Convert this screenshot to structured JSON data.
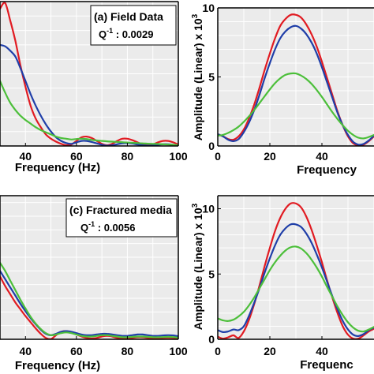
{
  "colors": {
    "red": "#e11b22",
    "blue": "#1f3ea8",
    "green": "#4cbf3a",
    "panel_bg": "#ebebeb",
    "grid": "#ffffff"
  },
  "chart_data": [
    {
      "id": "top-left",
      "type": "line",
      "annotation": [
        "(a) Field Data",
        "Q^-1 : 0.0029"
      ],
      "annotation_label": "(a) Field Data",
      "annotation_q": ": 0.0029",
      "xlabel": "Frequency (Hz)",
      "ylabel": "",
      "xlim": [
        30,
        100
      ],
      "ylim": [
        0,
        10
      ],
      "xticks": [
        40,
        60,
        80,
        100
      ],
      "grid": true,
      "series": [
        {
          "color": "red",
          "x": [
            30,
            32,
            34,
            36,
            38,
            40,
            42,
            44,
            46,
            48,
            50,
            52,
            54,
            56,
            58,
            60,
            62,
            64,
            66,
            68,
            70,
            72,
            74,
            76,
            78,
            80,
            82,
            84,
            86,
            88,
            90,
            92,
            94,
            96,
            98,
            100
          ],
          "y": [
            9.5,
            9.9,
            8.7,
            7.3,
            5.6,
            4.1,
            2.8,
            1.9,
            1.3,
            0.8,
            0.5,
            0.3,
            0.15,
            0.05,
            0.1,
            0.35,
            0.6,
            0.65,
            0.55,
            0.35,
            0.15,
            0.05,
            0.15,
            0.35,
            0.5,
            0.5,
            0.4,
            0.25,
            0.1,
            0.05,
            0.1,
            0.25,
            0.35,
            0.35,
            0.25,
            0.1
          ]
        },
        {
          "color": "blue",
          "x": [
            30,
            32,
            34,
            36,
            38,
            40,
            42,
            44,
            46,
            48,
            50,
            52,
            54,
            56,
            58,
            60,
            62,
            64,
            66,
            68,
            70,
            72,
            74,
            76,
            78,
            80,
            82,
            84,
            86,
            88,
            90,
            92,
            94,
            96,
            98,
            100
          ],
          "y": [
            7.0,
            6.9,
            6.6,
            6.2,
            5.4,
            4.5,
            3.6,
            2.8,
            2.1,
            1.5,
            1.0,
            0.6,
            0.35,
            0.2,
            0.15,
            0.25,
            0.35,
            0.35,
            0.28,
            0.18,
            0.08,
            0.02,
            0.05,
            0.12,
            0.18,
            0.2,
            0.17,
            0.1,
            0.05,
            0.02,
            0.04,
            0.08,
            0.12,
            0.12,
            0.08,
            0.03
          ]
        },
        {
          "color": "green",
          "x": [
            30,
            32,
            34,
            36,
            38,
            40,
            42,
            44,
            46,
            48,
            50,
            52,
            54,
            56,
            58,
            60,
            62,
            64,
            66,
            68,
            70,
            72,
            74,
            76,
            78,
            80,
            82,
            84,
            86,
            88,
            90,
            92,
            94,
            96,
            98,
            100
          ],
          "y": [
            4.5,
            3.7,
            3.0,
            2.5,
            2.1,
            1.8,
            1.55,
            1.3,
            1.1,
            0.95,
            0.8,
            0.65,
            0.55,
            0.5,
            0.45,
            0.48,
            0.5,
            0.48,
            0.42,
            0.38,
            0.35,
            0.32,
            0.3,
            0.28,
            0.26,
            0.24,
            0.22,
            0.2,
            0.18,
            0.16,
            0.15,
            0.14,
            0.12,
            0.1,
            0.08,
            0.05
          ]
        }
      ]
    },
    {
      "id": "top-right",
      "type": "line",
      "annotation": [],
      "xlabel": "Frequency",
      "ylabel": "Amplitude (Linear) x 10^3",
      "ylabel_main": "Amplitude (Linear) x 10",
      "ylabel_sup": "3",
      "xlim": [
        0,
        60
      ],
      "ylim": [
        0,
        10
      ],
      "xticks": [
        0,
        20,
        40
      ],
      "yticks": [
        0,
        5,
        10
      ],
      "grid": true,
      "series": [
        {
          "color": "red",
          "x": [
            0,
            2,
            4,
            6,
            8,
            10,
            12,
            14,
            16,
            18,
            20,
            22,
            24,
            26,
            28,
            30,
            32,
            34,
            36,
            38,
            40,
            42,
            44,
            46,
            48,
            50,
            52,
            54,
            56,
            58,
            60
          ],
          "y": [
            0.85,
            0.7,
            0.5,
            0.45,
            0.7,
            1.2,
            2.0,
            3.0,
            4.2,
            5.5,
            6.7,
            7.8,
            8.7,
            9.2,
            9.5,
            9.5,
            9.3,
            8.8,
            8.1,
            7.2,
            6.1,
            4.9,
            3.7,
            2.5,
            1.5,
            0.7,
            0.2,
            0.05,
            0.1,
            0.35,
            0.7
          ]
        },
        {
          "color": "blue",
          "x": [
            0,
            2,
            4,
            6,
            8,
            10,
            12,
            14,
            16,
            18,
            20,
            22,
            24,
            26,
            28,
            30,
            32,
            34,
            36,
            38,
            40,
            42,
            44,
            46,
            48,
            50,
            52,
            54,
            56,
            58,
            60
          ],
          "y": [
            0.85,
            0.7,
            0.45,
            0.35,
            0.5,
            1.0,
            1.7,
            2.6,
            3.7,
            4.9,
            6.0,
            7.0,
            7.8,
            8.3,
            8.6,
            8.7,
            8.5,
            8.1,
            7.5,
            6.7,
            5.7,
            4.6,
            3.5,
            2.4,
            1.5,
            0.8,
            0.3,
            0.1,
            0.15,
            0.4,
            0.75
          ]
        },
        {
          "color": "green",
          "x": [
            0,
            2,
            4,
            6,
            8,
            10,
            12,
            14,
            16,
            18,
            20,
            22,
            24,
            26,
            28,
            30,
            32,
            34,
            36,
            38,
            40,
            42,
            44,
            46,
            48,
            50,
            52,
            54,
            56,
            58,
            60
          ],
          "y": [
            0.75,
            0.8,
            0.95,
            1.15,
            1.4,
            1.75,
            2.15,
            2.6,
            3.1,
            3.6,
            4.1,
            4.55,
            4.9,
            5.15,
            5.25,
            5.25,
            5.1,
            4.85,
            4.5,
            4.05,
            3.55,
            3.0,
            2.45,
            1.95,
            1.5,
            1.1,
            0.8,
            0.6,
            0.55,
            0.65,
            0.8
          ]
        }
      ]
    },
    {
      "id": "bottom-left",
      "type": "line",
      "annotation": [
        "(c) Fractured media",
        "Q^-1 : 0.0056"
      ],
      "annotation_label": "(c) Fractured media",
      "annotation_q": ": 0.0056",
      "xlabel": "Frequency (Hz)",
      "ylabel": "",
      "xlim": [
        30,
        100
      ],
      "ylim": [
        0,
        10.5
      ],
      "xticks": [
        40,
        60,
        80,
        100
      ],
      "grid": true,
      "series": [
        {
          "color": "red",
          "x": [
            30,
            32,
            34,
            36,
            38,
            40,
            42,
            44,
            46,
            48,
            50,
            52,
            54,
            56,
            58,
            60,
            62,
            64,
            66,
            68,
            70,
            72,
            74,
            76,
            78,
            80,
            82,
            84,
            86,
            88,
            90,
            92,
            94,
            96,
            98,
            100
          ],
          "y": [
            4.6,
            3.9,
            3.3,
            2.7,
            2.2,
            1.7,
            1.25,
            0.8,
            0.4,
            0.1,
            0.02,
            0.3,
            0.55,
            0.6,
            0.5,
            0.35,
            0.2,
            0.1,
            0.05,
            0.1,
            0.2,
            0.25,
            0.2,
            0.1,
            0.05,
            0.05,
            0.1,
            0.15,
            0.15,
            0.1,
            0.05,
            0.05,
            0.1,
            0.12,
            0.1,
            0.05
          ]
        },
        {
          "color": "blue",
          "x": [
            30,
            32,
            34,
            36,
            38,
            40,
            42,
            44,
            46,
            48,
            50,
            52,
            54,
            56,
            58,
            60,
            62,
            64,
            66,
            68,
            70,
            72,
            74,
            76,
            78,
            80,
            82,
            84,
            86,
            88,
            90,
            92,
            94,
            96,
            98,
            100
          ],
          "y": [
            5.0,
            4.4,
            3.8,
            3.2,
            2.6,
            2.05,
            1.55,
            1.1,
            0.7,
            0.4,
            0.3,
            0.4,
            0.55,
            0.6,
            0.55,
            0.45,
            0.35,
            0.3,
            0.3,
            0.35,
            0.4,
            0.4,
            0.35,
            0.3,
            0.25,
            0.25,
            0.3,
            0.35,
            0.35,
            0.3,
            0.25,
            0.25,
            0.28,
            0.3,
            0.28,
            0.22
          ]
        },
        {
          "color": "green",
          "x": [
            30,
            32,
            34,
            36,
            38,
            40,
            42,
            44,
            46,
            48,
            50,
            52,
            54,
            56,
            58,
            60,
            62,
            64,
            66,
            68,
            70,
            72,
            74,
            76,
            78,
            80,
            82,
            84,
            86,
            88,
            90,
            92,
            94,
            96,
            98,
            100
          ],
          "y": [
            5.6,
            5.0,
            4.3,
            3.6,
            2.9,
            2.25,
            1.65,
            1.15,
            0.75,
            0.45,
            0.3,
            0.35,
            0.45,
            0.5,
            0.45,
            0.35,
            0.25,
            0.2,
            0.2,
            0.25,
            0.3,
            0.3,
            0.25,
            0.2,
            0.15,
            0.15,
            0.18,
            0.2,
            0.2,
            0.18,
            0.15,
            0.15,
            0.16,
            0.18,
            0.16,
            0.12
          ]
        }
      ]
    },
    {
      "id": "bottom-right",
      "type": "line",
      "annotation": [],
      "xlabel": "Frequenc",
      "ylabel": "Amplitude (Linear) x 10^3",
      "ylabel_main": "Amplitude (Linear) x 10",
      "ylabel_sup": "3",
      "xlim": [
        0,
        60
      ],
      "ylim": [
        0,
        11
      ],
      "xticks": [
        0,
        20,
        40
      ],
      "yticks": [
        0,
        5,
        10
      ],
      "grid": true,
      "series": [
        {
          "color": "red",
          "x": [
            0,
            2,
            4,
            6,
            8,
            10,
            12,
            14,
            16,
            18,
            20,
            22,
            24,
            26,
            28,
            30,
            32,
            34,
            36,
            38,
            40,
            42,
            44,
            46,
            48,
            50,
            52,
            54,
            56,
            58,
            60
          ],
          "y": [
            0.2,
            0.05,
            0.15,
            0.3,
            0.1,
            0.6,
            1.5,
            2.7,
            4.1,
            5.6,
            7.0,
            8.3,
            9.3,
            10.0,
            10.4,
            10.4,
            10.1,
            9.4,
            8.4,
            7.2,
            5.9,
            4.5,
            3.2,
            2.0,
            1.0,
            0.35,
            0.05,
            0.05,
            0.3,
            0.6,
            0.8
          ]
        },
        {
          "color": "blue",
          "x": [
            0,
            2,
            4,
            6,
            8,
            10,
            12,
            14,
            16,
            18,
            20,
            22,
            24,
            26,
            28,
            30,
            32,
            34,
            36,
            38,
            40,
            42,
            44,
            46,
            48,
            50,
            52,
            54,
            56,
            58,
            60
          ],
          "y": [
            0.7,
            0.55,
            0.6,
            0.75,
            0.7,
            1.0,
            1.8,
            2.8,
            3.9,
            5.1,
            6.2,
            7.2,
            8.0,
            8.5,
            8.8,
            8.8,
            8.6,
            8.1,
            7.4,
            6.5,
            5.5,
            4.4,
            3.3,
            2.3,
            1.4,
            0.75,
            0.35,
            0.25,
            0.4,
            0.7,
            0.9
          ]
        },
        {
          "color": "green",
          "x": [
            0,
            2,
            4,
            6,
            8,
            10,
            12,
            14,
            16,
            18,
            20,
            22,
            24,
            26,
            28,
            30,
            32,
            34,
            36,
            38,
            40,
            42,
            44,
            46,
            48,
            50,
            52,
            54,
            56,
            58,
            60
          ],
          "y": [
            1.6,
            1.45,
            1.4,
            1.5,
            1.75,
            2.1,
            2.6,
            3.2,
            3.9,
            4.6,
            5.3,
            5.9,
            6.4,
            6.8,
            7.05,
            7.1,
            6.95,
            6.6,
            6.1,
            5.5,
            4.8,
            4.0,
            3.25,
            2.5,
            1.85,
            1.3,
            0.9,
            0.65,
            0.6,
            0.75,
            0.95
          ]
        }
      ]
    }
  ]
}
